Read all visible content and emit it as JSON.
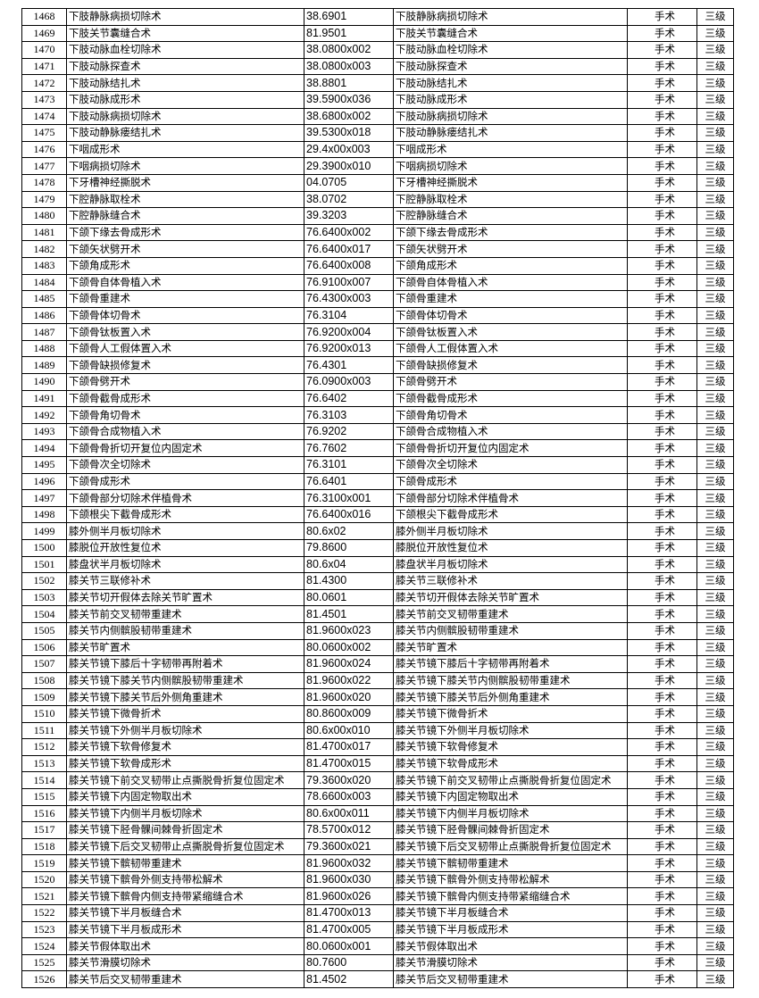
{
  "table": {
    "rows": [
      [
        "1468",
        "下肢静脉病损切除术",
        "38.6901",
        "下肢静脉病损切除术",
        "手术",
        "三级"
      ],
      [
        "1469",
        "下肢关节囊缝合术",
        "81.9501",
        "下肢关节囊缝合术",
        "手术",
        "三级"
      ],
      [
        "1470",
        "下肢动脉血栓切除术",
        "38.0800x002",
        "下肢动脉血栓切除术",
        "手术",
        "三级"
      ],
      [
        "1471",
        "下肢动脉探查术",
        "38.0800x003",
        "下肢动脉探查术",
        "手术",
        "三级"
      ],
      [
        "1472",
        "下肢动脉结扎术",
        "38.8801",
        "下肢动脉结扎术",
        "手术",
        "三级"
      ],
      [
        "1473",
        "下肢动脉成形术",
        "39.5900x036",
        "下肢动脉成形术",
        "手术",
        "三级"
      ],
      [
        "1474",
        "下肢动脉病损切除术",
        "38.6800x002",
        "下肢动脉病损切除术",
        "手术",
        "三级"
      ],
      [
        "1475",
        "下肢动静脉瘘结扎术",
        "39.5300x018",
        "下肢动静脉瘘结扎术",
        "手术",
        "三级"
      ],
      [
        "1476",
        "下咽成形术",
        "29.4x00x003",
        "下咽成形术",
        "手术",
        "三级"
      ],
      [
        "1477",
        "下咽病损切除术",
        "29.3900x010",
        "下咽病损切除术",
        "手术",
        "三级"
      ],
      [
        "1478",
        "下牙槽神经撕脱术",
        "04.0705",
        "下牙槽神经撕脱术",
        "手术",
        "三级"
      ],
      [
        "1479",
        "下腔静脉取栓术",
        "38.0702",
        "下腔静脉取栓术",
        "手术",
        "三级"
      ],
      [
        "1480",
        "下腔静脉缝合术",
        "39.3203",
        "下腔静脉缝合术",
        "手术",
        "三级"
      ],
      [
        "1481",
        "下颌下缘去骨成形术",
        "76.6400x002",
        "下颌下缘去骨成形术",
        "手术",
        "三级"
      ],
      [
        "1482",
        "下颌矢状劈开术",
        "76.6400x017",
        "下颌矢状劈开术",
        "手术",
        "三级"
      ],
      [
        "1483",
        "下颌角成形术",
        "76.6400x008",
        "下颌角成形术",
        "手术",
        "三级"
      ],
      [
        "1484",
        "下颌骨自体骨植入术",
        "76.9100x007",
        "下颌骨自体骨植入术",
        "手术",
        "三级"
      ],
      [
        "1485",
        "下颌骨重建术",
        "76.4300x003",
        "下颌骨重建术",
        "手术",
        "三级"
      ],
      [
        "1486",
        "下颌骨体切骨术",
        "76.3104",
        "下颌骨体切骨术",
        "手术",
        "三级"
      ],
      [
        "1487",
        "下颌骨钛板置入术",
        "76.9200x004",
        "下颌骨钛板置入术",
        "手术",
        "三级"
      ],
      [
        "1488",
        "下颌骨人工假体置入术",
        "76.9200x013",
        "下颌骨人工假体置入术",
        "手术",
        "三级"
      ],
      [
        "1489",
        "下颌骨缺损修复术",
        "76.4301",
        "下颌骨缺损修复术",
        "手术",
        "三级"
      ],
      [
        "1490",
        "下颌骨劈开术",
        "76.0900x003",
        "下颌骨劈开术",
        "手术",
        "三级"
      ],
      [
        "1491",
        "下颌骨截骨成形术",
        "76.6402",
        "下颌骨截骨成形术",
        "手术",
        "三级"
      ],
      [
        "1492",
        "下颌骨角切骨术",
        "76.3103",
        "下颌骨角切骨术",
        "手术",
        "三级"
      ],
      [
        "1493",
        "下颌骨合成物植入术",
        "76.9202",
        "下颌骨合成物植入术",
        "手术",
        "三级"
      ],
      [
        "1494",
        "下颌骨骨折切开复位内固定术",
        "76.7602",
        "下颌骨骨折切开复位内固定术",
        "手术",
        "三级"
      ],
      [
        "1495",
        "下颌骨次全切除术",
        "76.3101",
        "下颌骨次全切除术",
        "手术",
        "三级"
      ],
      [
        "1496",
        "下颌骨成形术",
        "76.6401",
        "下颌骨成形术",
        "手术",
        "三级"
      ],
      [
        "1497",
        "下颌骨部分切除术伴植骨术",
        "76.3100x001",
        "下颌骨部分切除术伴植骨术",
        "手术",
        "三级"
      ],
      [
        "1498",
        "下颌根尖下截骨成形术",
        "76.6400x016",
        "下颌根尖下截骨成形术",
        "手术",
        "三级"
      ],
      [
        "1499",
        "膝外侧半月板切除术",
        "80.6x02",
        "膝外侧半月板切除术",
        "手术",
        "三级"
      ],
      [
        "1500",
        "膝脱位开放性复位术",
        "79.8600",
        "膝脱位开放性复位术",
        "手术",
        "三级"
      ],
      [
        "1501",
        "膝盘状半月板切除术",
        "80.6x04",
        "膝盘状半月板切除术",
        "手术",
        "三级"
      ],
      [
        "1502",
        "膝关节三联修补术",
        "81.4300",
        "膝关节三联修补术",
        "手术",
        "三级"
      ],
      [
        "1503",
        "膝关节切开假体去除关节旷置术",
        "80.0601",
        "膝关节切开假体去除关节旷置术",
        "手术",
        "三级"
      ],
      [
        "1504",
        "膝关节前交叉韧带重建术",
        "81.4501",
        "膝关节前交叉韧带重建术",
        "手术",
        "三级"
      ],
      [
        "1505",
        "膝关节内侧髌股韧带重建术",
        "81.9600x023",
        "膝关节内侧髌股韧带重建术",
        "手术",
        "三级"
      ],
      [
        "1506",
        "膝关节旷置术",
        "80.0600x002",
        "膝关节旷置术",
        "手术",
        "三级"
      ],
      [
        "1507",
        "膝关节镜下膝后十字韧带再附着术",
        "81.9600x024",
        "膝关节镜下膝后十字韧带再附着术",
        "手术",
        "三级"
      ],
      [
        "1508",
        "膝关节镜下膝关节内侧髌股韧带重建术",
        "81.9600x022",
        "膝关节镜下膝关节内侧髌股韧带重建术",
        "手术",
        "三级"
      ],
      [
        "1509",
        "膝关节镜下膝关节后外侧角重建术",
        "81.9600x020",
        "膝关节镜下膝关节后外侧角重建术",
        "手术",
        "三级"
      ],
      [
        "1510",
        "膝关节镜下微骨折术",
        "80.8600x009",
        "膝关节镜下微骨折术",
        "手术",
        "三级"
      ],
      [
        "1511",
        "膝关节镜下外侧半月板切除术",
        "80.6x00x010",
        "膝关节镜下外侧半月板切除术",
        "手术",
        "三级"
      ],
      [
        "1512",
        "膝关节镜下软骨修复术",
        "81.4700x017",
        "膝关节镜下软骨修复术",
        "手术",
        "三级"
      ],
      [
        "1513",
        "膝关节镜下软骨成形术",
        "81.4700x015",
        "膝关节镜下软骨成形术",
        "手术",
        "三级"
      ],
      [
        "1514",
        "膝关节镜下前交叉韧带止点撕脱骨折复位固定术",
        "79.3600x020",
        "膝关节镜下前交叉韧带止点撕脱骨折复位固定术",
        "手术",
        "三级"
      ],
      [
        "1515",
        "膝关节镜下内固定物取出术",
        "78.6600x003",
        "膝关节镜下内固定物取出术",
        "手术",
        "三级"
      ],
      [
        "1516",
        "膝关节镜下内侧半月板切除术",
        "80.6x00x011",
        "膝关节镜下内侧半月板切除术",
        "手术",
        "三级"
      ],
      [
        "1517",
        "膝关节镜下胫骨髁间棘骨折固定术",
        "78.5700x012",
        "膝关节镜下胫骨髁间棘骨折固定术",
        "手术",
        "三级"
      ],
      [
        "1518",
        "膝关节镜下后交叉韧带止点撕脱骨折复位固定术",
        "79.3600x021",
        "膝关节镜下后交叉韧带止点撕脱骨折复位固定术",
        "手术",
        "三级"
      ],
      [
        "1519",
        "膝关节镜下髌韧带重建术",
        "81.9600x032",
        "膝关节镜下髌韧带重建术",
        "手术",
        "三级"
      ],
      [
        "1520",
        "膝关节镜下髌骨外侧支持带松解术",
        "81.9600x030",
        "膝关节镜下髌骨外侧支持带松解术",
        "手术",
        "三级"
      ],
      [
        "1521",
        "膝关节镜下髌骨内侧支持带紧缩缝合术",
        "81.9600x026",
        "膝关节镜下髌骨内侧支持带紧缩缝合术",
        "手术",
        "三级"
      ],
      [
        "1522",
        "膝关节镜下半月板缝合术",
        "81.4700x013",
        "膝关节镜下半月板缝合术",
        "手术",
        "三级"
      ],
      [
        "1523",
        "膝关节镜下半月板成形术",
        "81.4700x005",
        "膝关节镜下半月板成形术",
        "手术",
        "三级"
      ],
      [
        "1524",
        "膝关节假体取出术",
        "80.0600x001",
        "膝关节假体取出术",
        "手术",
        "三级"
      ],
      [
        "1525",
        "膝关节滑膜切除术",
        "80.7600",
        "膝关节滑膜切除术",
        "手术",
        "三级"
      ],
      [
        "1526",
        "膝关节后交叉韧带重建术",
        "81.4502",
        "膝关节后交叉韧带重建术",
        "手术",
        "三级"
      ]
    ]
  }
}
